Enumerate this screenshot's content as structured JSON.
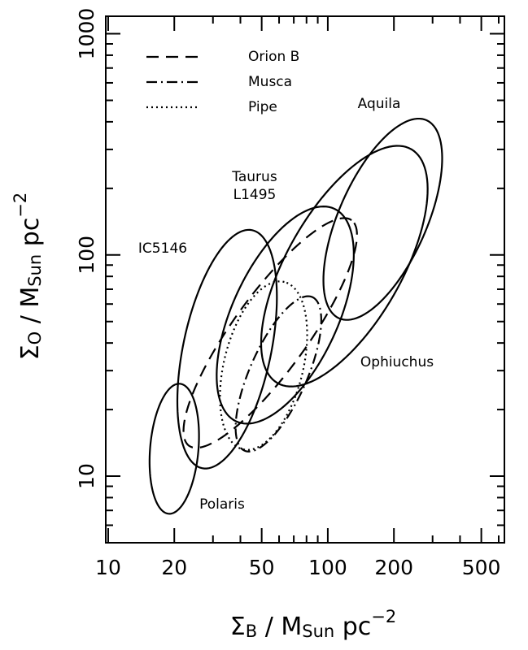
{
  "chart_data": {
    "type": "ellipse",
    "xlabel_parts": [
      "Σ",
      "B",
      " / M",
      "Sun",
      " pc",
      "−2"
    ],
    "ylabel_parts": [
      "Σ",
      "O",
      " / M",
      "Sun",
      " pc",
      "−2"
    ],
    "xscale": "log",
    "yscale": "log",
    "xlim": [
      9.75,
      637
    ],
    "ylim": [
      5,
      1200
    ],
    "xticks": [
      10,
      20,
      50,
      100,
      200,
      500
    ],
    "xminor": [
      30,
      40,
      60,
      70,
      80,
      90,
      300,
      400,
      600
    ],
    "yticks": [
      10,
      100,
      1000
    ],
    "yminor": [
      6,
      7,
      8,
      9,
      20,
      30,
      40,
      50,
      60,
      70,
      80,
      90,
      200,
      300,
      400,
      500,
      600,
      700,
      800,
      900
    ],
    "legend": "upper left",
    "series": [
      {
        "name": "Orion B",
        "dash": "15,9",
        "in_legend": true,
        "x_center": 54.7,
        "y_center": 44.4,
        "semi_major_dex": 0.63,
        "semi_minor_dex": 0.17,
        "angle_deg": 54
      },
      {
        "name": "Musca",
        "dash": "13,5,2,5",
        "in_legend": true,
        "x_center": 59.6,
        "y_center": 29,
        "semi_major_dex": 0.38,
        "semi_minor_dex": 0.13,
        "angle_deg": 66
      },
      {
        "name": "Pipe",
        "dash": "2,4",
        "in_legend": true,
        "x_center": 51,
        "y_center": 31.6,
        "semi_major_dex": 0.39,
        "semi_minor_dex": 0.18,
        "angle_deg": 76
      },
      {
        "name": "Aquila",
        "dash": "none",
        "in_legend": false,
        "x_center": 178,
        "y_center": 145,
        "semi_major_dex": 0.49,
        "semi_minor_dex": 0.2,
        "angle_deg": 66
      },
      {
        "name": "Taurus\nL1495",
        "dash": "none",
        "in_legend": false,
        "x_center": 64,
        "y_center": 53.5,
        "semi_major_dex": 0.53,
        "semi_minor_dex": 0.24,
        "angle_deg": 65
      },
      {
        "name": "IC5146",
        "dash": "none",
        "in_legend": false,
        "x_center": 34.8,
        "y_center": 37.5,
        "semi_major_dex": 0.55,
        "semi_minor_dex": 0.2,
        "angle_deg": 78
      },
      {
        "name": "Ophiuchus",
        "dash": "none",
        "in_legend": false,
        "x_center": 119,
        "y_center": 89,
        "semi_major_dex": 0.61,
        "semi_minor_dex": 0.26,
        "angle_deg": 60
      },
      {
        "name": "Polaris",
        "dash": "none",
        "in_legend": false,
        "x_center": 20,
        "y_center": 13.3,
        "semi_major_dex": 0.295,
        "semi_minor_dex": 0.11,
        "angle_deg": 85
      }
    ]
  }
}
